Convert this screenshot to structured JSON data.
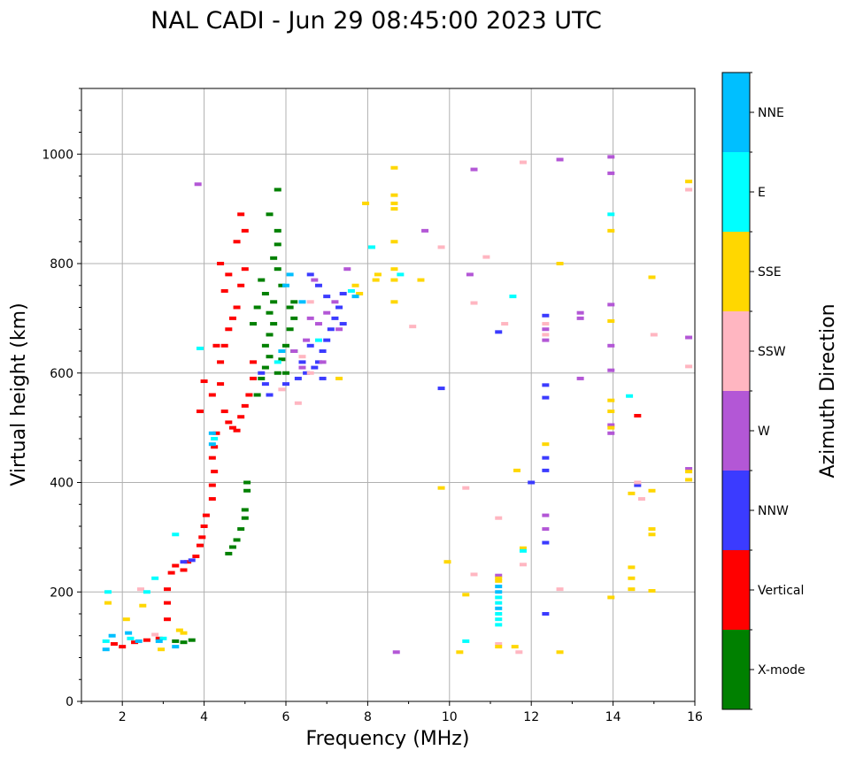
{
  "chart_data": {
    "type": "scatter",
    "title": "NAL CADI - Jun 29 08:45:00 2023 UTC",
    "xlabel": "Frequency (MHz)",
    "ylabel": "Virtual height (km)",
    "xlim": [
      1,
      16
    ],
    "ylim": [
      0,
      1120
    ],
    "xticks": [
      2,
      4,
      6,
      8,
      10,
      12,
      14,
      16
    ],
    "yticks": [
      0,
      200,
      400,
      600,
      800,
      1000
    ],
    "xtick_labels": [
      "2",
      "4",
      "6",
      "8",
      "10",
      "12",
      "14",
      "16"
    ],
    "ytick_labels": [
      "0",
      "200",
      "400",
      "600",
      "800",
      "1000"
    ],
    "grid": true,
    "colorbar": {
      "label": "Azimuth Direction",
      "categories": [
        "X-mode",
        "Vertical",
        "NNW",
        "W",
        "SSW",
        "SSE",
        "E",
        "NNE"
      ],
      "colors": [
        "#008000",
        "#ff0000",
        "#3b3bff",
        "#b357d6",
        "#ffb6c1",
        "#ffd700",
        "#00ffff",
        "#00bfff"
      ]
    },
    "series": [
      {
        "name": "X-mode",
        "points": [
          [
            3.3,
            110
          ],
          [
            3.5,
            108
          ],
          [
            3.7,
            112
          ],
          [
            4.6,
            270
          ],
          [
            4.7,
            282
          ],
          [
            4.8,
            295
          ],
          [
            4.9,
            315
          ],
          [
            5.0,
            335
          ],
          [
            5.0,
            350
          ],
          [
            5.05,
            385
          ],
          [
            5.05,
            400
          ],
          [
            5.3,
            560
          ],
          [
            5.4,
            590
          ],
          [
            5.5,
            610
          ],
          [
            5.6,
            630
          ],
          [
            5.5,
            650
          ],
          [
            5.6,
            670
          ],
          [
            5.7,
            690
          ],
          [
            5.6,
            710
          ],
          [
            5.7,
            730
          ],
          [
            5.5,
            745
          ],
          [
            5.8,
            600
          ],
          [
            5.9,
            625
          ],
          [
            6.0,
            650
          ],
          [
            6.1,
            680
          ],
          [
            6.2,
            700
          ],
          [
            6.1,
            720
          ],
          [
            5.9,
            760
          ],
          [
            5.8,
            790
          ],
          [
            5.7,
            810
          ],
          [
            5.8,
            835
          ],
          [
            5.8,
            860
          ],
          [
            5.6,
            890
          ],
          [
            5.8,
            935
          ],
          [
            6.2,
            640
          ],
          [
            6.0,
            600
          ],
          [
            5.4,
            770
          ],
          [
            5.3,
            720
          ],
          [
            5.2,
            690
          ],
          [
            6.2,
            730
          ]
        ]
      },
      {
        "name": "Vertical",
        "points": [
          [
            1.8,
            105
          ],
          [
            2.0,
            100
          ],
          [
            2.3,
            108
          ],
          [
            2.6,
            112
          ],
          [
            2.9,
            115
          ],
          [
            3.1,
            150
          ],
          [
            3.1,
            180
          ],
          [
            3.1,
            205
          ],
          [
            3.2,
            235
          ],
          [
            3.3,
            248
          ],
          [
            3.5,
            240
          ],
          [
            3.6,
            255
          ],
          [
            3.8,
            265
          ],
          [
            3.9,
            285
          ],
          [
            3.95,
            300
          ],
          [
            4.0,
            320
          ],
          [
            4.05,
            340
          ],
          [
            4.2,
            370
          ],
          [
            4.2,
            395
          ],
          [
            4.25,
            420
          ],
          [
            4.2,
            445
          ],
          [
            4.25,
            465
          ],
          [
            4.3,
            490
          ],
          [
            4.0,
            585
          ],
          [
            3.9,
            530
          ],
          [
            4.2,
            560
          ],
          [
            4.4,
            580
          ],
          [
            4.5,
            530
          ],
          [
            4.6,
            510
          ],
          [
            4.7,
            500
          ],
          [
            4.8,
            495
          ],
          [
            4.9,
            520
          ],
          [
            5.0,
            540
          ],
          [
            5.1,
            560
          ],
          [
            5.2,
            590
          ],
          [
            4.4,
            620
          ],
          [
            4.5,
            650
          ],
          [
            4.6,
            680
          ],
          [
            4.7,
            700
          ],
          [
            4.8,
            720
          ],
          [
            4.9,
            760
          ],
          [
            5.0,
            790
          ],
          [
            4.5,
            750
          ],
          [
            4.4,
            800
          ],
          [
            4.6,
            780
          ],
          [
            4.9,
            890
          ],
          [
            5.0,
            860
          ],
          [
            4.8,
            840
          ],
          [
            4.3,
            650
          ],
          [
            5.2,
            620
          ],
          [
            14.6,
            522
          ]
        ]
      },
      {
        "name": "NNW",
        "points": [
          [
            3.5,
            255
          ],
          [
            3.7,
            258
          ],
          [
            6.0,
            580
          ],
          [
            6.3,
            590
          ],
          [
            6.5,
            600
          ],
          [
            6.7,
            610
          ],
          [
            6.8,
            620
          ],
          [
            6.9,
            640
          ],
          [
            7.0,
            660
          ],
          [
            7.1,
            680
          ],
          [
            7.2,
            700
          ],
          [
            7.3,
            720
          ],
          [
            7.0,
            740
          ],
          [
            6.8,
            760
          ],
          [
            6.6,
            780
          ],
          [
            7.4,
            690
          ],
          [
            6.6,
            650
          ],
          [
            6.4,
            620
          ],
          [
            5.6,
            560
          ],
          [
            5.4,
            600
          ],
          [
            5.5,
            580
          ],
          [
            6.9,
            590
          ],
          [
            7.4,
            745
          ],
          [
            9.8,
            572
          ],
          [
            11.2,
            675
          ],
          [
            12.0,
            400
          ],
          [
            12.35,
            160
          ],
          [
            12.35,
            290
          ],
          [
            12.35,
            422
          ],
          [
            12.35,
            445
          ],
          [
            12.35,
            555
          ],
          [
            12.35,
            578
          ],
          [
            12.35,
            705
          ],
          [
            14.6,
            395
          ]
        ]
      },
      {
        "name": "W",
        "points": [
          [
            3.85,
            945
          ],
          [
            6.2,
            640
          ],
          [
            6.5,
            660
          ],
          [
            6.8,
            690
          ],
          [
            7.0,
            710
          ],
          [
            7.2,
            730
          ],
          [
            6.7,
            770
          ],
          [
            7.5,
            790
          ],
          [
            6.4,
            610
          ],
          [
            6.6,
            700
          ],
          [
            7.3,
            680
          ],
          [
            6.9,
            620
          ],
          [
            9.4,
            860
          ],
          [
            10.6,
            972
          ],
          [
            12.35,
            340
          ],
          [
            12.35,
            315
          ],
          [
            12.35,
            660
          ],
          [
            12.35,
            680
          ],
          [
            13.2,
            590
          ],
          [
            13.2,
            700
          ],
          [
            13.2,
            710
          ],
          [
            13.95,
            490
          ],
          [
            13.95,
            505
          ],
          [
            13.95,
            605
          ],
          [
            13.95,
            650
          ],
          [
            13.95,
            725
          ],
          [
            13.95,
            965
          ],
          [
            13.95,
            995
          ],
          [
            12.7,
            990
          ],
          [
            15.85,
            425
          ],
          [
            15.85,
            665
          ],
          [
            11.2,
            230
          ],
          [
            8.7,
            90
          ],
          [
            10.5,
            780
          ]
        ]
      },
      {
        "name": "SSW",
        "points": [
          [
            2.45,
            205
          ],
          [
            2.8,
            122
          ],
          [
            6.3,
            545
          ],
          [
            6.4,
            630
          ],
          [
            6.6,
            600
          ],
          [
            5.9,
            570
          ],
          [
            6.6,
            730
          ],
          [
            9.1,
            685
          ],
          [
            9.8,
            830
          ],
          [
            10.4,
            390
          ],
          [
            10.6,
            232
          ],
          [
            10.6,
            728
          ],
          [
            10.9,
            812
          ],
          [
            11.2,
            335
          ],
          [
            11.35,
            690
          ],
          [
            11.7,
            90
          ],
          [
            11.8,
            250
          ],
          [
            11.8,
            985
          ],
          [
            12.35,
            670
          ],
          [
            12.35,
            690
          ],
          [
            12.7,
            205
          ],
          [
            14.7,
            370
          ],
          [
            14.6,
            400
          ],
          [
            15.0,
            670
          ],
          [
            15.85,
            612
          ],
          [
            15.85,
            935
          ],
          [
            11.2,
            105
          ]
        ]
      },
      {
        "name": "SSE",
        "points": [
          [
            1.65,
            180
          ],
          [
            2.1,
            150
          ],
          [
            2.5,
            175
          ],
          [
            2.95,
            95
          ],
          [
            3.4,
            130
          ],
          [
            3.5,
            125
          ],
          [
            7.3,
            590
          ],
          [
            7.7,
            760
          ],
          [
            7.8,
            745
          ],
          [
            7.95,
            910
          ],
          [
            8.2,
            770
          ],
          [
            8.25,
            780
          ],
          [
            8.65,
            730
          ],
          [
            8.65,
            770
          ],
          [
            8.65,
            790
          ],
          [
            8.65,
            840
          ],
          [
            8.65,
            900
          ],
          [
            8.65,
            910
          ],
          [
            8.65,
            925
          ],
          [
            8.65,
            975
          ],
          [
            9.3,
            770
          ],
          [
            9.8,
            390
          ],
          [
            9.95,
            255
          ],
          [
            10.25,
            90
          ],
          [
            10.4,
            195
          ],
          [
            11.2,
            225
          ],
          [
            11.2,
            220
          ],
          [
            11.2,
            100
          ],
          [
            11.6,
            100
          ],
          [
            11.65,
            422
          ],
          [
            11.8,
            280
          ],
          [
            12.35,
            470
          ],
          [
            12.7,
            90
          ],
          [
            12.7,
            800
          ],
          [
            13.95,
            190
          ],
          [
            13.95,
            530
          ],
          [
            13.95,
            550
          ],
          [
            13.95,
            695
          ],
          [
            13.95,
            500
          ],
          [
            13.95,
            860
          ],
          [
            14.45,
            205
          ],
          [
            14.45,
            225
          ],
          [
            14.45,
            245
          ],
          [
            14.45,
            380
          ],
          [
            14.95,
            305
          ],
          [
            14.95,
            315
          ],
          [
            14.95,
            385
          ],
          [
            14.95,
            775
          ],
          [
            14.95,
            202
          ],
          [
            15.85,
            405
          ],
          [
            15.85,
            420
          ],
          [
            15.85,
            950
          ]
        ]
      },
      {
        "name": "E",
        "points": [
          [
            1.6,
            110
          ],
          [
            1.65,
            200
          ],
          [
            2.2,
            115
          ],
          [
            2.6,
            200
          ],
          [
            2.8,
            225
          ],
          [
            3.0,
            115
          ],
          [
            3.3,
            305
          ],
          [
            3.9,
            645
          ],
          [
            4.25,
            480
          ],
          [
            5.8,
            620
          ],
          [
            6.8,
            660
          ],
          [
            7.6,
            750
          ],
          [
            8.1,
            830
          ],
          [
            8.8,
            780
          ],
          [
            10.4,
            110
          ],
          [
            11.2,
            140
          ],
          [
            11.2,
            150
          ],
          [
            11.2,
            160
          ],
          [
            11.2,
            180
          ],
          [
            11.2,
            190
          ],
          [
            11.55,
            740
          ],
          [
            11.8,
            275
          ],
          [
            13.95,
            890
          ],
          [
            14.4,
            558
          ]
        ]
      },
      {
        "name": "NNE",
        "points": [
          [
            1.6,
            95
          ],
          [
            1.75,
            120
          ],
          [
            2.15,
            125
          ],
          [
            2.4,
            110
          ],
          [
            2.9,
            110
          ],
          [
            3.3,
            100
          ],
          [
            4.2,
            470
          ],
          [
            4.2,
            490
          ],
          [
            5.9,
            640
          ],
          [
            6.0,
            760
          ],
          [
            6.1,
            780
          ],
          [
            6.4,
            730
          ],
          [
            7.7,
            740
          ],
          [
            11.2,
            170
          ],
          [
            11.2,
            200
          ],
          [
            11.2,
            210
          ]
        ]
      }
    ]
  }
}
